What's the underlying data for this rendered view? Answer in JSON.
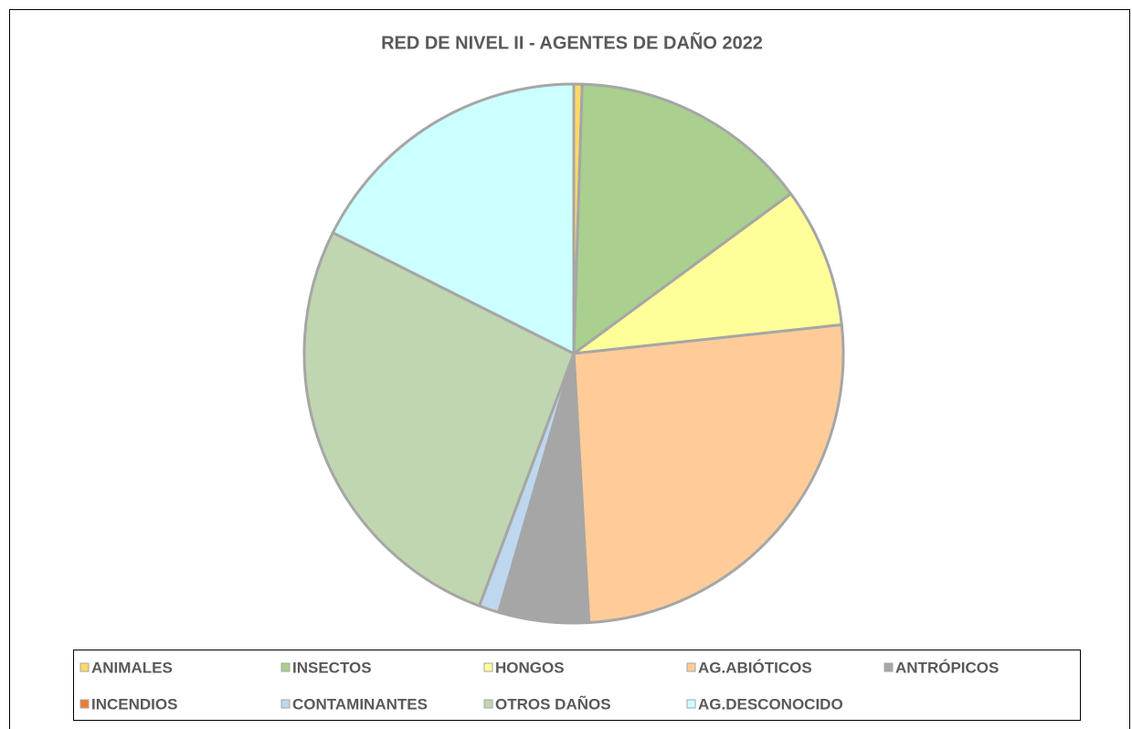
{
  "chart_data": {
    "type": "pie",
    "title": "RED DE NIVEL II - AGENTES DE DAÑO 2022",
    "categories": [
      "ANIMALES",
      "INSECTOS",
      "HONGOS",
      "AG.ABIÓTICOS",
      "ANTRÓPICOS",
      "INCENDIOS",
      "CONTAMINANTES",
      "OTROS DAÑOS",
      "AG.DESCONOCIDO"
    ],
    "values": [
      0.5,
      14.4,
      8.4,
      25.8,
      5.3,
      0.1,
      1.2,
      26.7,
      17.6
    ],
    "colors": [
      "#ffd966",
      "#a9d08e",
      "#ffff99",
      "#ffcc99",
      "#a6a6a6",
      "#ed7d31",
      "#bdd7ee",
      "#c0d6b0",
      "#ccffff"
    ],
    "legend": "bottom"
  }
}
